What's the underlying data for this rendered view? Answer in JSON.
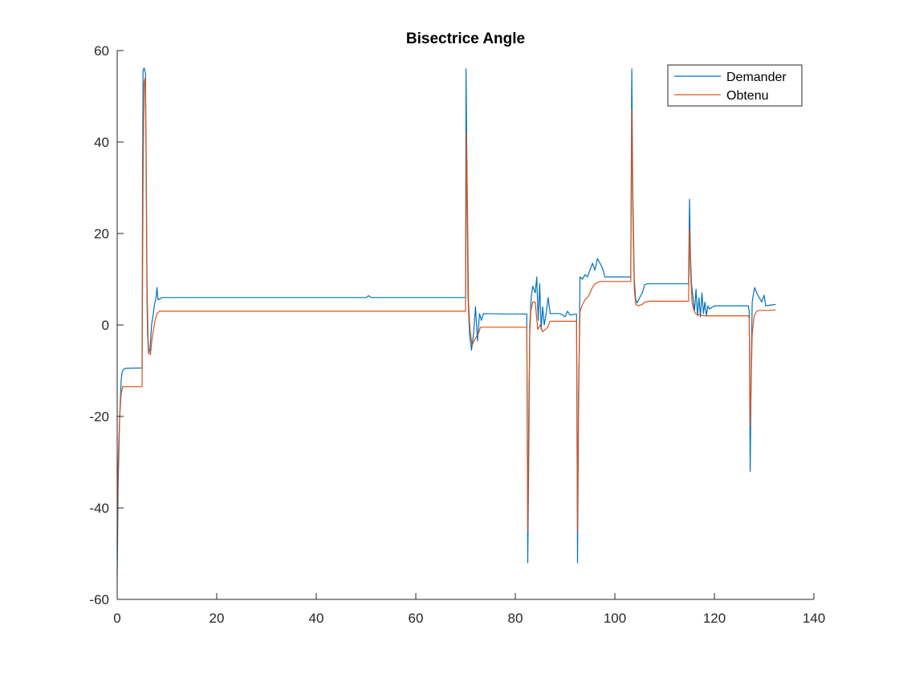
{
  "chart_data": {
    "type": "line",
    "title": "Bisectrice Angle",
    "xlabel": "",
    "ylabel": "",
    "xlim": [
      0,
      140
    ],
    "ylim": [
      -60,
      60
    ],
    "x_ticks": [
      0,
      20,
      40,
      60,
      80,
      100,
      120,
      140
    ],
    "y_ticks": [
      -60,
      -40,
      -20,
      0,
      20,
      40,
      60
    ],
    "grid": false,
    "legend_position": "top-right",
    "series": [
      {
        "name": "Demander",
        "color": "#0072BD",
        "points": [
          [
            0,
            -55
          ],
          [
            0.2,
            -35
          ],
          [
            0.5,
            -20
          ],
          [
            0.8,
            -12
          ],
          [
            1.0,
            -10.2
          ],
          [
            1.5,
            -9.5
          ],
          [
            5.0,
            -9.4
          ],
          [
            5.1,
            30
          ],
          [
            5.2,
            55.5
          ],
          [
            5.4,
            56.2
          ],
          [
            5.7,
            55
          ],
          [
            5.9,
            20
          ],
          [
            6.0,
            5
          ],
          [
            6.1,
            -2
          ],
          [
            6.3,
            -6.2
          ],
          [
            6.6,
            -5.5
          ],
          [
            6.9,
            0
          ],
          [
            7.2,
            2
          ],
          [
            7.5,
            4.5
          ],
          [
            7.8,
            6
          ],
          [
            8.0,
            8.2
          ],
          [
            8.2,
            5.5
          ],
          [
            9.0,
            6
          ],
          [
            50,
            6
          ],
          [
            50.5,
            6.4
          ],
          [
            51,
            6
          ],
          [
            70,
            6
          ],
          [
            70.1,
            56
          ],
          [
            70.3,
            30
          ],
          [
            70.5,
            6
          ],
          [
            70.8,
            -2
          ],
          [
            71.2,
            -5.5
          ],
          [
            71.6,
            -2
          ],
          [
            72,
            4
          ],
          [
            72.4,
            -3.5
          ],
          [
            72.8,
            2.5
          ],
          [
            73.2,
            1
          ],
          [
            73.6,
            2.5
          ],
          [
            78,
            2.4
          ],
          [
            82.3,
            2.4
          ],
          [
            82.5,
            -52
          ],
          [
            82.7,
            -30
          ],
          [
            82.9,
            0
          ],
          [
            83.2,
            6
          ],
          [
            83.5,
            8.5
          ],
          [
            84,
            7
          ],
          [
            84.3,
            10.5
          ],
          [
            84.6,
            1
          ],
          [
            84.9,
            9
          ],
          [
            85.2,
            -1
          ],
          [
            85.5,
            4
          ],
          [
            85.8,
            0
          ],
          [
            86.2,
            2.5
          ],
          [
            86.6,
            6
          ],
          [
            87,
            2.5
          ],
          [
            89,
            2.5
          ],
          [
            90,
            1.8
          ],
          [
            90.5,
            3
          ],
          [
            91,
            2.2
          ],
          [
            92.3,
            2.4
          ],
          [
            92.5,
            -52
          ],
          [
            92.7,
            -20
          ],
          [
            93,
            10.5
          ],
          [
            93.5,
            10
          ],
          [
            94,
            11
          ],
          [
            94.5,
            10.5
          ],
          [
            95,
            12
          ],
          [
            95.5,
            13.5
          ],
          [
            96,
            12
          ],
          [
            96.5,
            14.5
          ],
          [
            97,
            13.5
          ],
          [
            97.5,
            12.5
          ],
          [
            98,
            10.5
          ],
          [
            103.2,
            10.5
          ],
          [
            103.4,
            56
          ],
          [
            103.6,
            30
          ],
          [
            103.9,
            10
          ],
          [
            104.2,
            5.5
          ],
          [
            104.5,
            4.8
          ],
          [
            105,
            6
          ],
          [
            105.5,
            7
          ],
          [
            106,
            8.8
          ],
          [
            106.5,
            9
          ],
          [
            114.8,
            9
          ],
          [
            115,
            27.5
          ],
          [
            115.2,
            15
          ],
          [
            115.4,
            9
          ],
          [
            115.8,
            5
          ],
          [
            116,
            3
          ],
          [
            116.3,
            7.8
          ],
          [
            116.6,
            2
          ],
          [
            116.9,
            6
          ],
          [
            117.2,
            1.8
          ],
          [
            117.5,
            7
          ],
          [
            117.8,
            2.5
          ],
          [
            118.1,
            5
          ],
          [
            118.4,
            2
          ],
          [
            118.7,
            4.2
          ],
          [
            119,
            3.5
          ],
          [
            120,
            4.2
          ],
          [
            126.8,
            4.2
          ],
          [
            127,
            3
          ],
          [
            127.2,
            -32
          ],
          [
            127.4,
            -10
          ],
          [
            127.6,
            5
          ],
          [
            127.8,
            6.5
          ],
          [
            128.1,
            8.2
          ],
          [
            128.5,
            7
          ],
          [
            129,
            6
          ],
          [
            129.5,
            5
          ],
          [
            130,
            6.5
          ],
          [
            130.3,
            4.2
          ],
          [
            132.3,
            4.5
          ]
        ]
      },
      {
        "name": "Obtenu",
        "color": "#D95319",
        "points": [
          [
            0,
            -48
          ],
          [
            0.2,
            -30
          ],
          [
            0.5,
            -20
          ],
          [
            0.8,
            -15
          ],
          [
            1.1,
            -13.5
          ],
          [
            5.0,
            -13.5
          ],
          [
            5.2,
            30
          ],
          [
            5.4,
            53
          ],
          [
            5.6,
            54
          ],
          [
            5.8,
            40
          ],
          [
            6.0,
            10
          ],
          [
            6.2,
            -3
          ],
          [
            6.4,
            -6.2
          ],
          [
            6.7,
            -6.5
          ],
          [
            7.0,
            -3
          ],
          [
            7.3,
            -1
          ],
          [
            7.6,
            1
          ],
          [
            8.0,
            2.5
          ],
          [
            8.5,
            3
          ],
          [
            70,
            3
          ],
          [
            70.2,
            42
          ],
          [
            70.4,
            25
          ],
          [
            70.6,
            5
          ],
          [
            70.9,
            -1
          ],
          [
            71.3,
            -4.5
          ],
          [
            71.7,
            -3.5
          ],
          [
            72.2,
            -2.5
          ],
          [
            72.6,
            -1.8
          ],
          [
            73,
            -0.5
          ],
          [
            82.3,
            -0.5
          ],
          [
            82.5,
            -45
          ],
          [
            82.7,
            -20
          ],
          [
            82.9,
            -2
          ],
          [
            83.1,
            3
          ],
          [
            83.5,
            5
          ],
          [
            84,
            5
          ],
          [
            84.5,
            -1
          ],
          [
            85,
            0
          ],
          [
            85.5,
            -1.5
          ],
          [
            86,
            -1
          ],
          [
            86.5,
            -0.5
          ],
          [
            87,
            0.8
          ],
          [
            92.3,
            0.8
          ],
          [
            92.5,
            -45
          ],
          [
            92.7,
            -15
          ],
          [
            93,
            3
          ],
          [
            93.5,
            4.5
          ],
          [
            94,
            5.5
          ],
          [
            94.5,
            6
          ],
          [
            95,
            7
          ],
          [
            95.5,
            8.2
          ],
          [
            96,
            9
          ],
          [
            97,
            9.5
          ],
          [
            103.2,
            9.5
          ],
          [
            103.4,
            47
          ],
          [
            103.6,
            25
          ],
          [
            103.9,
            8
          ],
          [
            104.2,
            4.5
          ],
          [
            104.7,
            4.2
          ],
          [
            105.5,
            4.5
          ],
          [
            106,
            5
          ],
          [
            107,
            5.2
          ],
          [
            114.8,
            5.2
          ],
          [
            115,
            21
          ],
          [
            115.2,
            12
          ],
          [
            115.5,
            5
          ],
          [
            115.8,
            3.5
          ],
          [
            116.2,
            2.5
          ],
          [
            117,
            2.2
          ],
          [
            118,
            2
          ],
          [
            126.8,
            2
          ],
          [
            127,
            1.5
          ],
          [
            127.2,
            -22
          ],
          [
            127.4,
            -12
          ],
          [
            127.6,
            -2
          ],
          [
            128,
            2
          ],
          [
            128.5,
            3
          ],
          [
            129,
            3.2
          ],
          [
            130,
            3.2
          ],
          [
            131,
            3.2
          ],
          [
            132.3,
            3.3
          ]
        ]
      }
    ]
  }
}
